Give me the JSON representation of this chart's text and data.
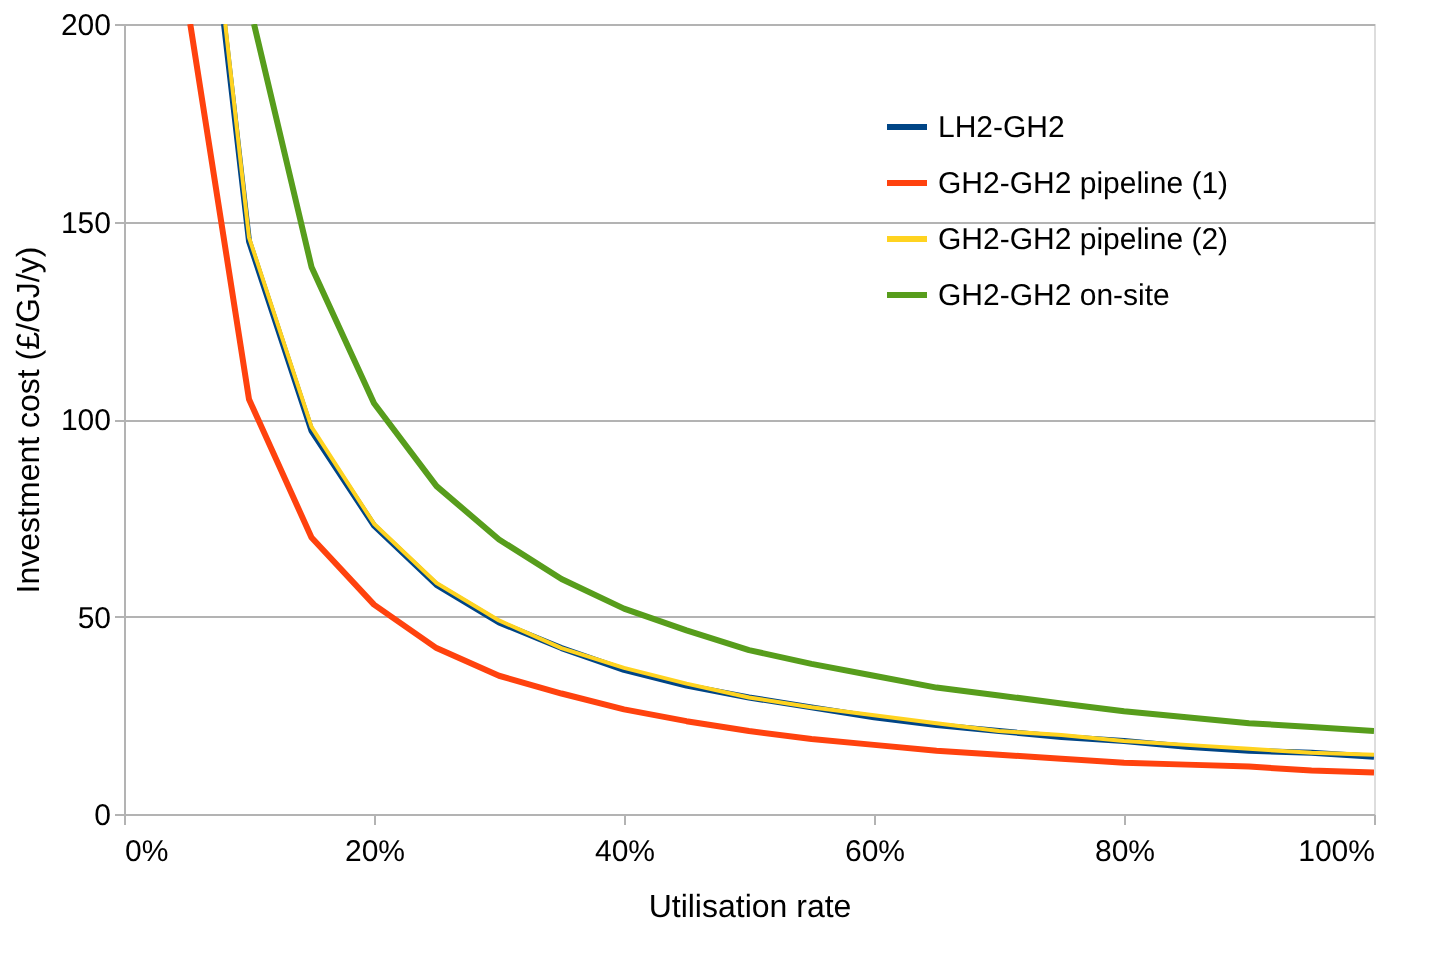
{
  "chart_data": {
    "type": "line",
    "xlabel": "Utilisation rate",
    "ylabel": "Investment cost (£/GJ/y)",
    "xlim": [
      0,
      100
    ],
    "xticks": [
      {
        "value": 0,
        "label": "0%"
      },
      {
        "value": 20,
        "label": "20%"
      },
      {
        "value": 40,
        "label": "40%"
      },
      {
        "value": 60,
        "label": "60%"
      },
      {
        "value": 80,
        "label": "80%"
      },
      {
        "value": 100,
        "label": "100%"
      }
    ],
    "ylim": [
      0,
      200
    ],
    "yticks": [
      0,
      50,
      100,
      150,
      200
    ],
    "grid": "y",
    "legend": "top right",
    "marker": "none",
    "line_style": "solid",
    "series": [
      {
        "name": "LH2-GH2",
        "color": "#004586",
        "x": [
          8,
          10,
          15,
          20,
          25,
          30,
          35,
          40,
          45,
          50,
          55,
          60,
          65,
          70,
          75,
          80,
          85,
          90,
          95,
          100
        ],
        "values": [
          200,
          145,
          97,
          73,
          58,
          48.5,
          42,
          36.5,
          32.5,
          29.5,
          27,
          24.5,
          22.5,
          21,
          19.5,
          18.5,
          17,
          16,
          15.5,
          14.5
        ]
      },
      {
        "name": "GH2-GH2 pipeline (1)",
        "color": "#ff420e",
        "x": [
          5.3,
          10,
          15,
          20,
          25,
          30,
          35,
          40,
          45,
          50,
          55,
          60,
          65,
          70,
          75,
          80,
          85,
          90,
          95,
          100
        ],
        "values": [
          200,
          105,
          70,
          53,
          42,
          35,
          30.5,
          26.5,
          23.5,
          21,
          19,
          17.5,
          16,
          15,
          14,
          13,
          12.5,
          12,
          11,
          10.5
        ]
      },
      {
        "name": "GH2-GH2 pipeline (2)",
        "color": "#ffd320",
        "x": [
          8.1,
          10,
          15,
          20,
          25,
          30,
          35,
          40,
          45,
          50,
          55,
          60,
          65,
          70,
          75,
          80,
          85,
          90,
          95,
          100
        ],
        "values": [
          200,
          146,
          98,
          73.5,
          58.5,
          49,
          42,
          37,
          33,
          29.5,
          27,
          25,
          23,
          21,
          20,
          18.5,
          17.5,
          16.5,
          15.5,
          15
        ]
      },
      {
        "name": "GH2-GH2 on-site",
        "color": "#579d1c",
        "x": [
          10.4,
          15,
          20,
          25,
          30,
          35,
          40,
          45,
          50,
          55,
          60,
          65,
          70,
          75,
          80,
          85,
          90,
          95,
          100
        ],
        "values": [
          200,
          138.5,
          104,
          83,
          69.5,
          59.5,
          52,
          46.5,
          41.5,
          38,
          35,
          32,
          30,
          28,
          26,
          24.5,
          23,
          22,
          21
        ]
      }
    ]
  }
}
